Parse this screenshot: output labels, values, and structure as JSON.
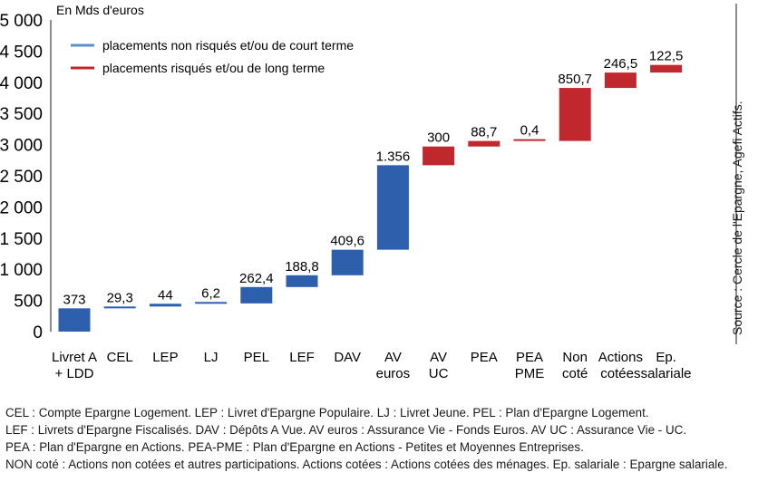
{
  "chart_data": {
    "type": "waterfall",
    "unit": "En Mds d'euros",
    "y_ticks": [
      "5 000",
      "4 500",
      "4 000",
      "3 500",
      "3 000",
      "2 500",
      "2 000",
      "1 500",
      "1 000",
      "500",
      "0"
    ],
    "ylim": [
      0,
      5000
    ],
    "grid": false,
    "legend_position": "top-left",
    "legend": [
      {
        "label": "placements non risqués et/ou de court terme",
        "color": "#5b8fd0"
      },
      {
        "label": "placements risqués et/ou de long terme",
        "color": "#c0282d"
      }
    ],
    "colors": {
      "non_risque": "#2d5fad",
      "risque": "#c0282d"
    },
    "bars": [
      {
        "cat": [
          "Livret A",
          "+ LDD"
        ],
        "value": 373,
        "label": "373",
        "group": "non_risque"
      },
      {
        "cat": [
          "CEL"
        ],
        "value": 29.3,
        "label": "29,3",
        "group": "non_risque"
      },
      {
        "cat": [
          "LEP"
        ],
        "value": 44,
        "label": "44",
        "group": "non_risque"
      },
      {
        "cat": [
          "LJ"
        ],
        "value": 6.2,
        "label": "6,2",
        "group": "non_risque"
      },
      {
        "cat": [
          "PEL"
        ],
        "value": 262.4,
        "label": "262,4",
        "group": "non_risque"
      },
      {
        "cat": [
          "LEF"
        ],
        "value": 188.8,
        "label": "188,8",
        "group": "non_risque"
      },
      {
        "cat": [
          "DAV"
        ],
        "value": 409.6,
        "label": "409,6",
        "group": "non_risque"
      },
      {
        "cat": [
          "AV",
          "euros"
        ],
        "value": 1356,
        "label": "1.356",
        "group": "non_risque"
      },
      {
        "cat": [
          "AV",
          "UC"
        ],
        "value": 300,
        "label": "300",
        "group": "risque"
      },
      {
        "cat": [
          "PEA"
        ],
        "value": 88.7,
        "label": "88,7",
        "group": "risque"
      },
      {
        "cat": [
          "PEA",
          "PME"
        ],
        "value": 0.4,
        "label": "0,4",
        "group": "risque"
      },
      {
        "cat": [
          "Non",
          "coté"
        ],
        "value": 850.7,
        "label": "850,7",
        "group": "risque"
      },
      {
        "cat": [
          "Actions",
          "cotées"
        ],
        "value": 246.5,
        "label": "246,5",
        "group": "risque"
      },
      {
        "cat": [
          "Ep.",
          "salariale"
        ],
        "value": 122.5,
        "label": "122,5",
        "group": "risque"
      }
    ],
    "source": "Source : Cercle de l'Epargne, Agefi Actifs."
  },
  "notes": [
    "CEL : Compte Epargne Logement. LEP : Livret d'Epargne Populaire. LJ : Livret Jeune. PEL : Plan d'Epargne Logement.",
    "LEF : Livrets d'Epargne Fiscalisés. DAV : Dépôts A Vue. AV euros : Assurance Vie - Fonds Euros. AV UC : Assurance Vie - UC.",
    "PEA : Plan d'Epargne en Actions. PEA-PME : Plan d'Epargne en Actions - Petites et Moyennes Entreprises.",
    "NON coté : Actions non cotées et autres participations. Actions cotées : Actions cotées des ménages. Ep. salariale : Epargne salariale."
  ]
}
